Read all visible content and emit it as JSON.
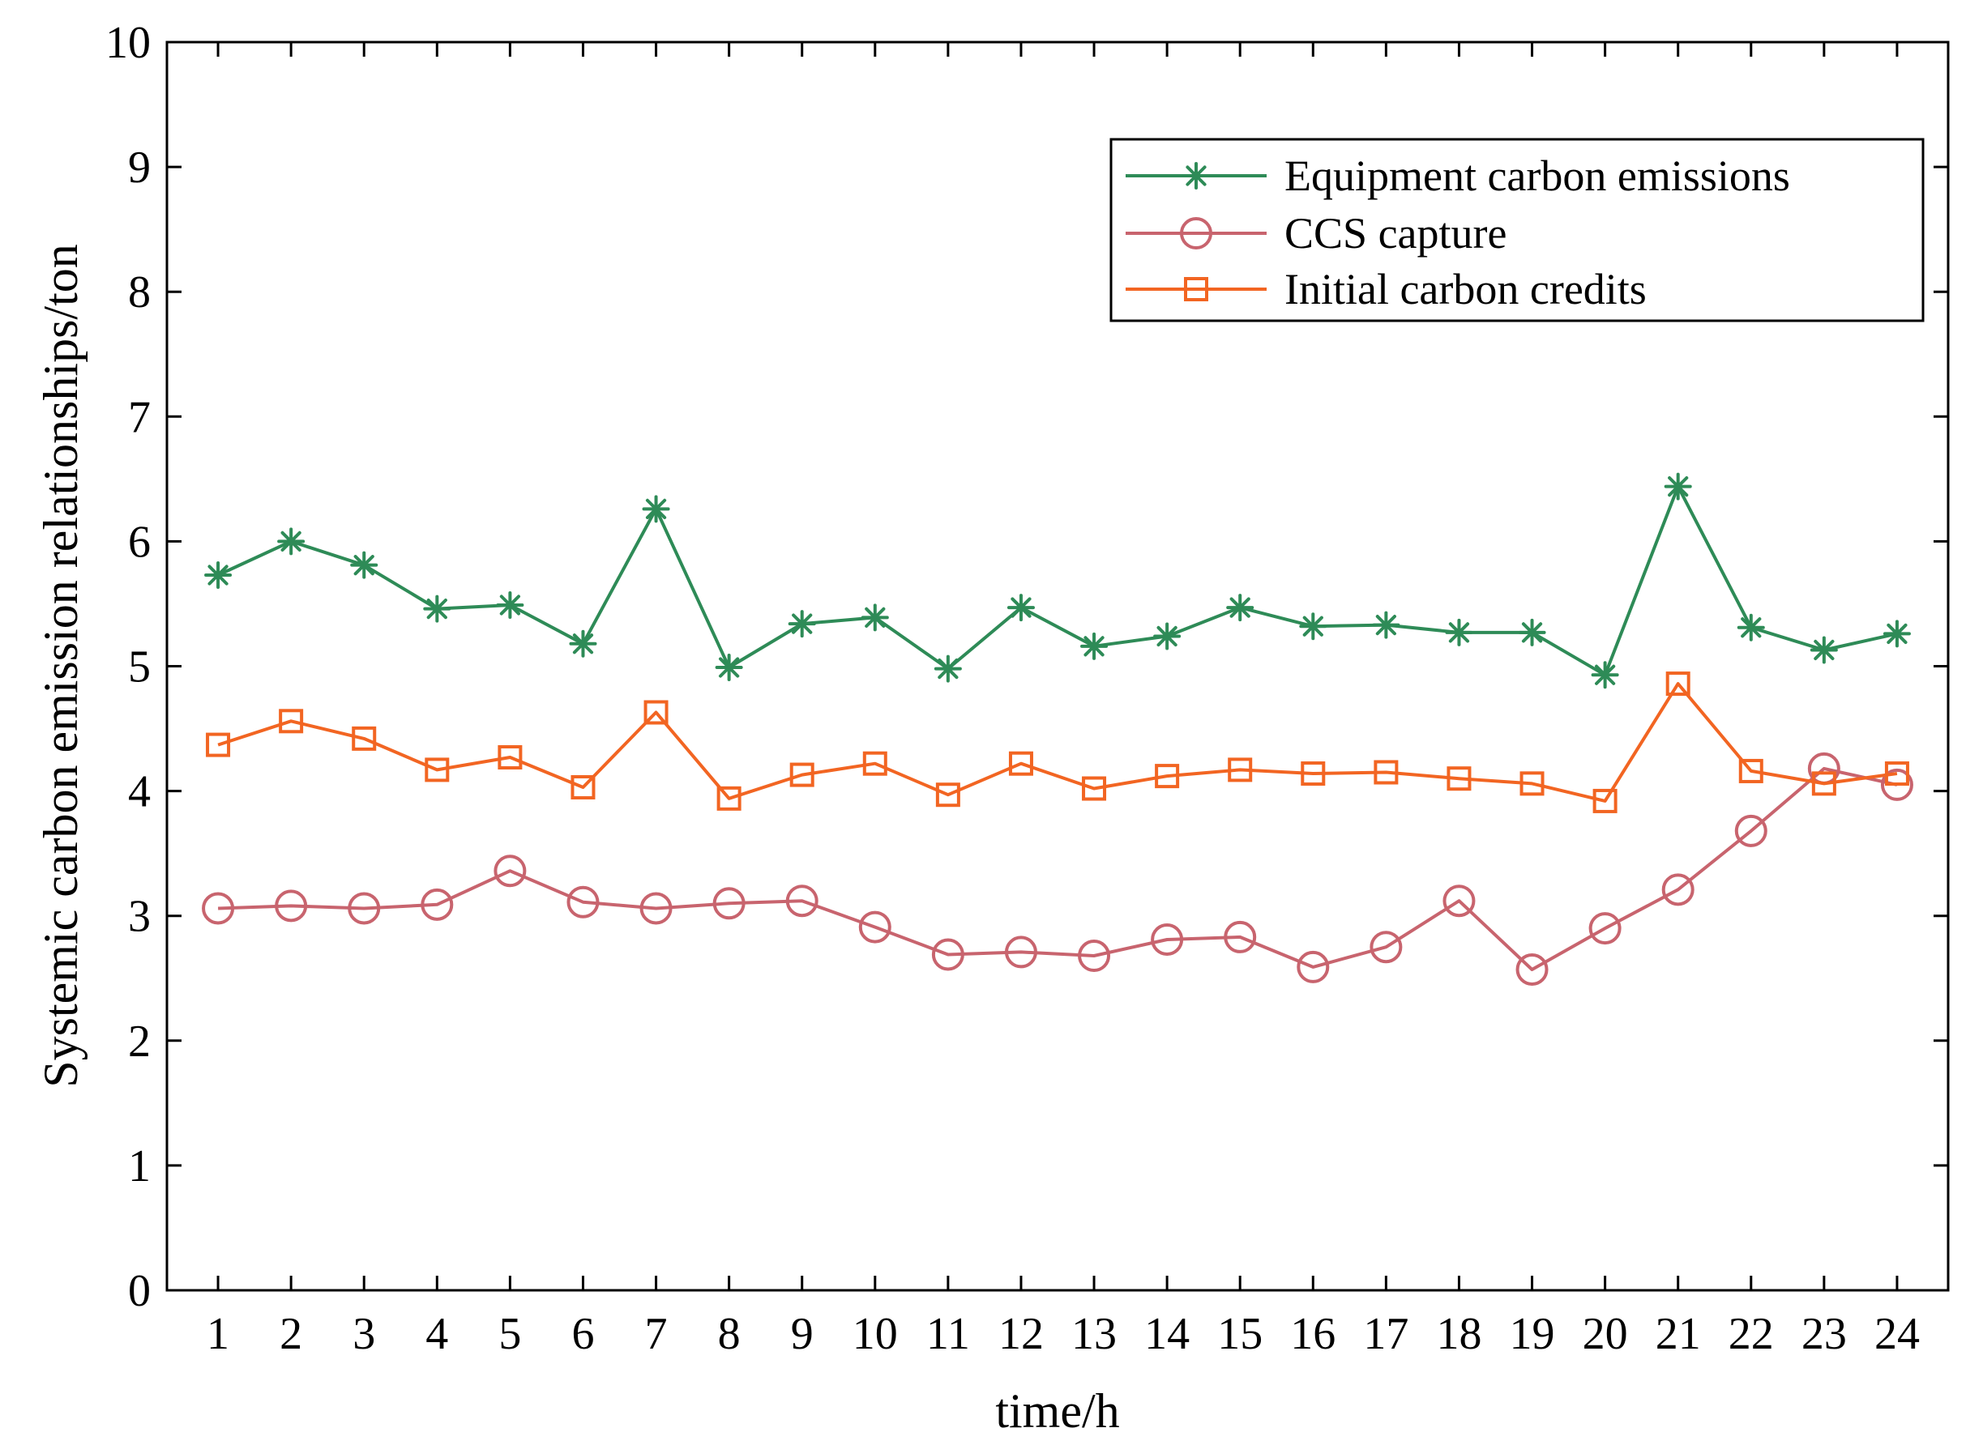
{
  "chart_data": {
    "type": "line",
    "title": "",
    "xlabel": "time/h",
    "ylabel": "Systemic carbon emission relationships/ton",
    "xlim": [
      0.3,
      24.7
    ],
    "ylim": [
      0,
      10
    ],
    "xticks": [
      1,
      2,
      3,
      4,
      5,
      6,
      7,
      8,
      9,
      10,
      11,
      12,
      13,
      14,
      15,
      16,
      17,
      18,
      19,
      20,
      21,
      22,
      23,
      24
    ],
    "xtick_labels": [
      "1",
      "2",
      "3",
      "4",
      "5",
      "6",
      "7",
      "8",
      "9",
      "10",
      "11",
      "12",
      "13",
      "14",
      "15",
      "16",
      "17",
      "18",
      "19",
      "20",
      "21",
      "22",
      "23",
      "24"
    ],
    "yticks": [
      0,
      1,
      2,
      3,
      4,
      5,
      6,
      7,
      8,
      9,
      10
    ],
    "ytick_labels": [
      "0",
      "1",
      "2",
      "3",
      "4",
      "5",
      "6",
      "7",
      "8",
      "9",
      "10"
    ],
    "grid": false,
    "legend_position": "top-right",
    "x": [
      1,
      2,
      3,
      4,
      5,
      6,
      7,
      8,
      9,
      10,
      11,
      12,
      13,
      14,
      15,
      16,
      17,
      18,
      19,
      20,
      21,
      22,
      23,
      24
    ],
    "series": [
      {
        "name": "Equipment carbon emissions",
        "color": "#2e8b57",
        "marker": "asterisk",
        "values": [
          5.73,
          6.0,
          5.81,
          5.46,
          5.49,
          5.18,
          6.26,
          4.99,
          5.34,
          5.39,
          4.98,
          5.47,
          5.16,
          5.24,
          5.47,
          5.32,
          5.33,
          5.27,
          5.27,
          4.93,
          6.44,
          5.31,
          5.13,
          5.26
        ]
      },
      {
        "name": "CCS capture",
        "color": "#c8646e",
        "marker": "circle",
        "values": [
          3.06,
          3.08,
          3.06,
          3.09,
          3.36,
          3.11,
          3.06,
          3.1,
          3.12,
          2.91,
          2.69,
          2.71,
          2.68,
          2.81,
          2.83,
          2.59,
          2.75,
          3.12,
          2.57,
          2.9,
          3.21,
          3.68,
          4.18,
          4.05
        ]
      },
      {
        "name": "Initial carbon credits",
        "color": "#f26522",
        "marker": "square",
        "values": [
          4.37,
          4.56,
          4.42,
          4.17,
          4.27,
          4.03,
          4.63,
          3.94,
          4.13,
          4.22,
          3.97,
          4.22,
          4.02,
          4.12,
          4.17,
          4.14,
          4.15,
          4.1,
          4.06,
          3.92,
          4.86,
          4.16,
          4.06,
          4.14
        ]
      }
    ]
  }
}
